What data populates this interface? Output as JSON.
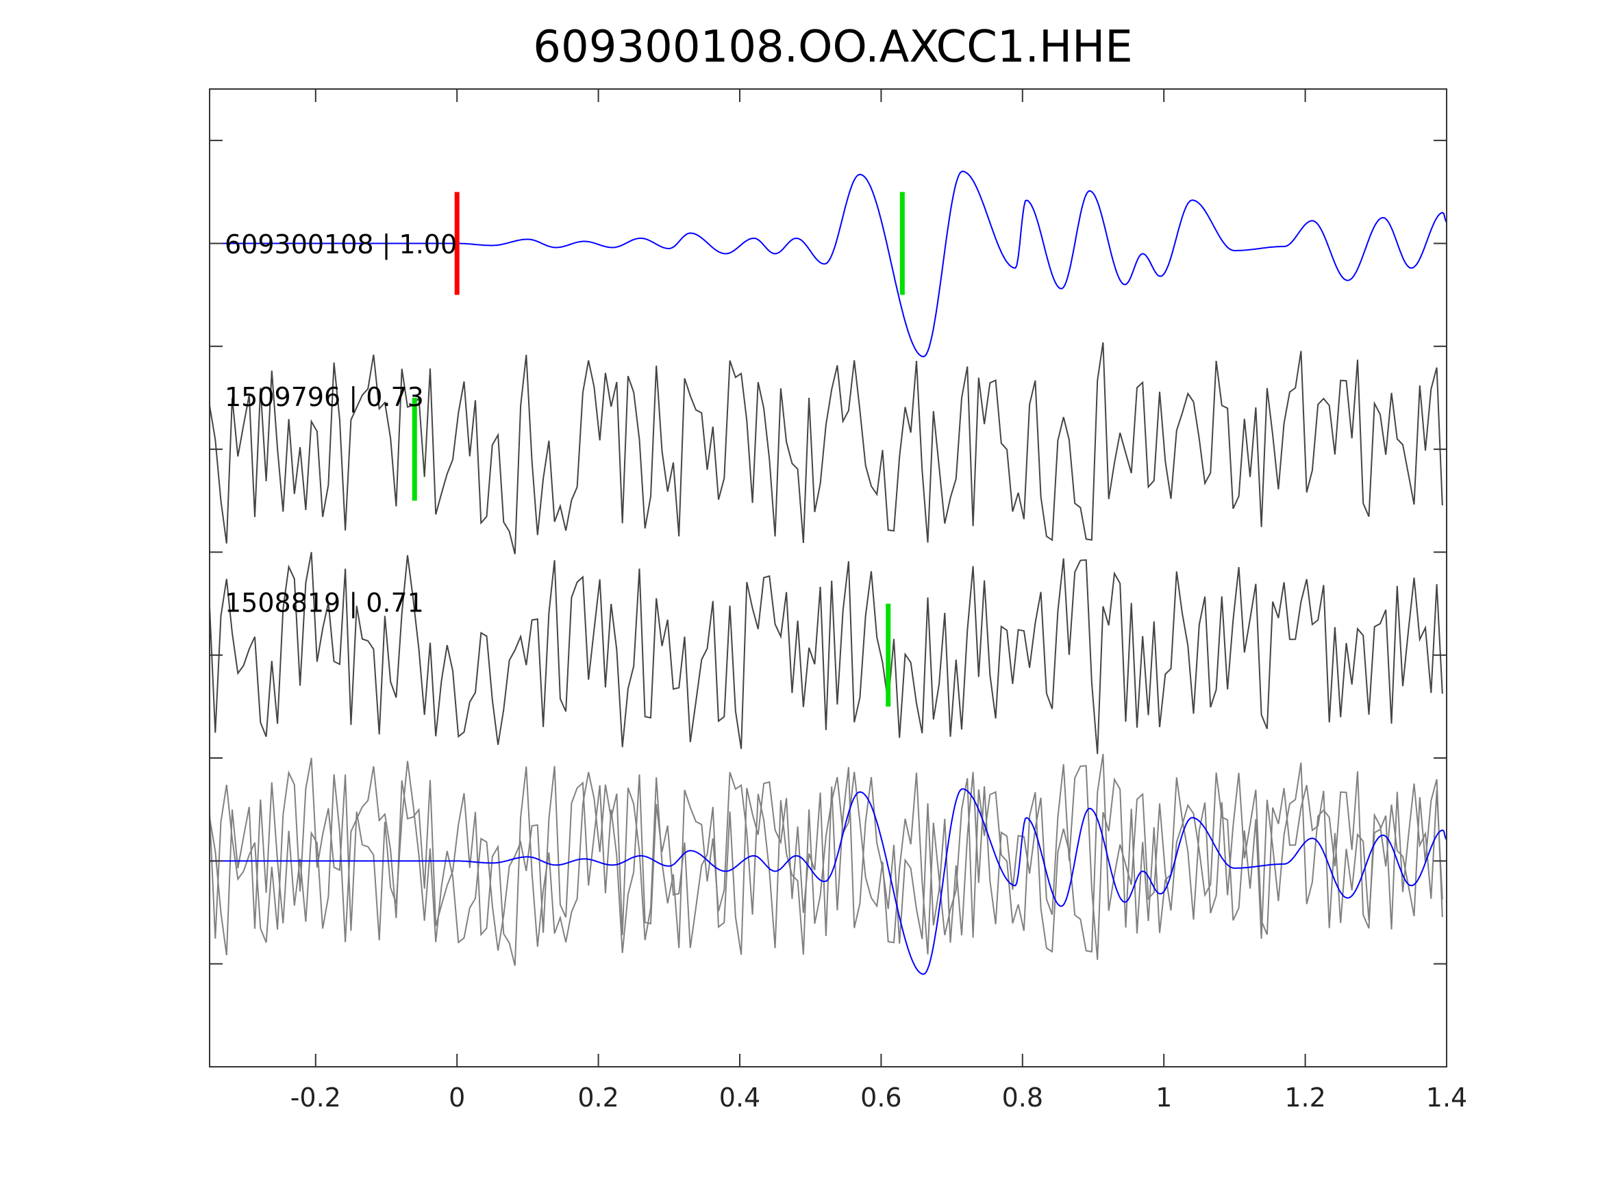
{
  "chart_data": {
    "type": "line",
    "title": "609300108.OO.AXCC1.HHE",
    "xlabel": "",
    "ylabel": "",
    "xlim": [
      -0.35,
      1.4
    ],
    "ylim": [
      0,
      9.5
    ],
    "xticks": [
      -0.2,
      0,
      0.2,
      0.4,
      0.6,
      0.8,
      1,
      1.2,
      1.4
    ],
    "xtick_labels": [
      "-0.2",
      "0",
      "0.2",
      "0.4",
      "0.6",
      "0.8",
      "1",
      "1.2",
      "1.4"
    ],
    "yticks": [
      1,
      2,
      3,
      4,
      5,
      6,
      7,
      8,
      9
    ],
    "grid": false,
    "colors": {
      "template": "#0000ff",
      "neighbor": "#444444",
      "overlay_gray": "#808080",
      "reference_pick": "#ff0000",
      "pick": "#00e000",
      "axes": "#333333"
    },
    "template": {
      "label": "609300108 | 1.00",
      "offset": 8,
      "pick_time": 0,
      "pick_color": "red",
      "waveform": [
        [
          -0.35,
          0
        ],
        [
          0,
          0
        ],
        [
          0.05,
          -0.02
        ],
        [
          0.1,
          0.04
        ],
        [
          0.14,
          -0.04
        ],
        [
          0.18,
          0.02
        ],
        [
          0.22,
          -0.04
        ],
        [
          0.26,
          0.05
        ],
        [
          0.3,
          -0.05
        ],
        [
          0.33,
          0.1
        ],
        [
          0.38,
          -0.1
        ],
        [
          0.42,
          0.05
        ],
        [
          0.45,
          -0.1
        ],
        [
          0.48,
          0.05
        ],
        [
          0.52,
          -0.2
        ],
        [
          0.57,
          0.67
        ],
        [
          0.66,
          -1.1
        ],
        [
          0.715,
          0.7
        ],
        [
          0.79,
          -0.24
        ],
        [
          0.805,
          0.42
        ],
        [
          0.855,
          -0.44
        ],
        [
          0.895,
          0.51
        ],
        [
          0.945,
          -0.4
        ],
        [
          0.97,
          -0.1
        ],
        [
          0.995,
          -0.32
        ],
        [
          1.04,
          0.42
        ],
        [
          1.1,
          -0.07
        ],
        [
          1.17,
          -0.03
        ],
        [
          1.21,
          0.22
        ],
        [
          1.26,
          -0.36
        ],
        [
          1.31,
          0.25
        ],
        [
          1.35,
          -0.24
        ],
        [
          1.395,
          0.3
        ],
        [
          1.4,
          0.2
        ]
      ]
    },
    "neighbors": [
      {
        "label": "1509796 | 0.73",
        "offset": 6,
        "pick_time": -0.06,
        "seed": 17,
        "amplitude": 0.75
      },
      {
        "label": "1508819 | 0.71",
        "offset": 4,
        "pick_time": 0.61,
        "seed": 91,
        "amplitude": 0.75
      }
    ],
    "overlay": {
      "offset": 2,
      "description_series": [
        "neighbors",
        "template"
      ]
    },
    "sample_interval": 0.004
  }
}
